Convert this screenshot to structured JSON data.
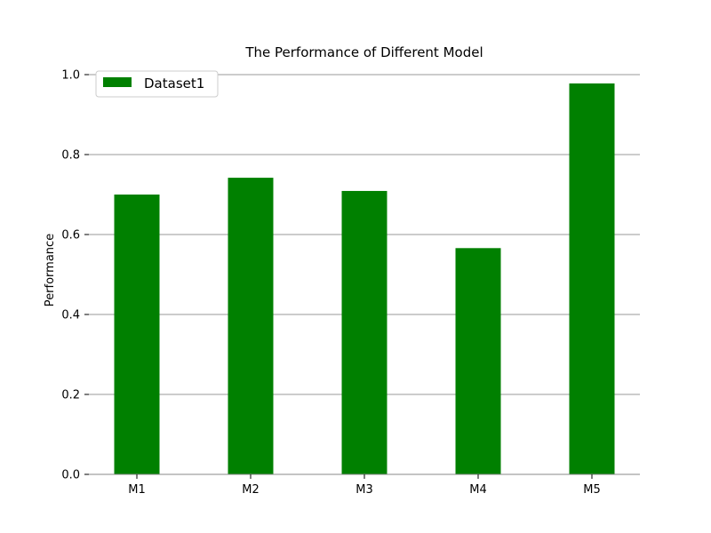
{
  "chart_data": {
    "type": "bar",
    "title": "The Performance of Different Model",
    "xlabel": "",
    "ylabel": "Performance",
    "categories": [
      "M1",
      "M2",
      "M3",
      "M4",
      "M5"
    ],
    "series": [
      {
        "name": "Dataset1",
        "color": "#008000",
        "values": [
          0.7,
          0.742,
          0.709,
          0.566,
          0.978
        ]
      }
    ],
    "ylim": [
      0,
      1.0
    ],
    "yticks": [
      0.0,
      0.2,
      0.4,
      0.6,
      0.8,
      1.0
    ],
    "ytick_labels": [
      "0.0",
      "0.2",
      "0.4",
      "0.6",
      "0.8",
      "1.0"
    ],
    "grid": "horizontal",
    "legend_position": "top-left",
    "colors": {
      "bar": "#008000",
      "grid": "#999999",
      "axis": "#888888"
    }
  }
}
